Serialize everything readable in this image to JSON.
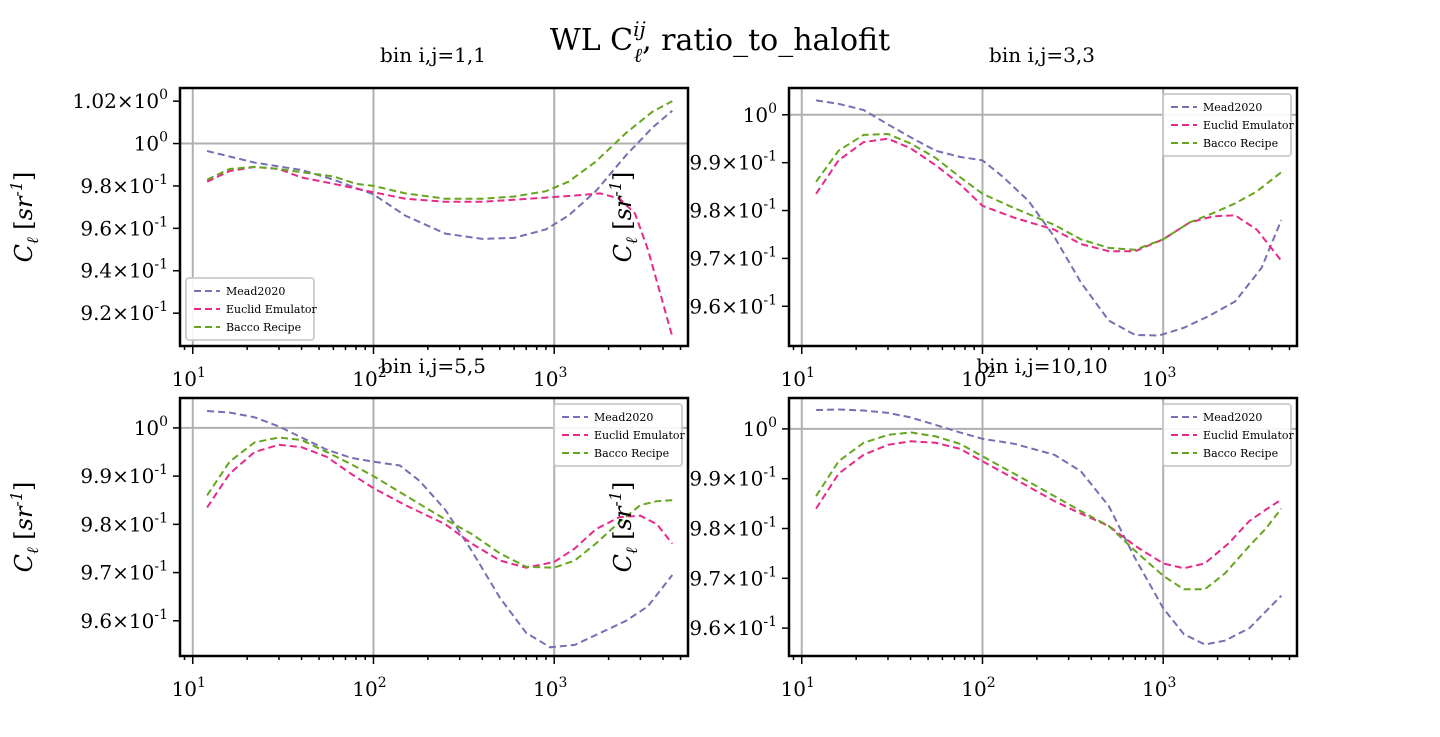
{
  "figure": {
    "title": "WL C",
    "title_sup": "ij",
    "title_sub": "ℓ",
    "title_rest": ", ratio_to_halofit",
    "colors": {
      "Mead2020": "#7570b3",
      "Euclid Emulator": "#e7298a",
      "Bacco Recipe": "#66a61e",
      "grid": "#b0b0b0"
    }
  },
  "chart_data": [
    {
      "type": "line",
      "title": "bin i,j=1,1",
      "ylabel": "C_ℓ [sr^-1]",
      "xlabel": "",
      "xscale": "log",
      "xlim": [
        8.5,
        5500
      ],
      "ylim": [
        0.9045,
        1.0262
      ],
      "yticks": [
        {
          "v": 0.92,
          "base": "9.2",
          "exp": "-1"
        },
        {
          "v": 0.94,
          "base": "9.4",
          "exp": "-1"
        },
        {
          "v": 0.96,
          "base": "9.6",
          "exp": "-1"
        },
        {
          "v": 0.98,
          "base": "9.8",
          "exp": "-1"
        },
        {
          "v": 1.0,
          "base": "10",
          "exp": "0"
        },
        {
          "v": 1.02,
          "base": "1.02",
          "exp": "0"
        }
      ],
      "ygrid": [
        1.0
      ],
      "xticks": [
        {
          "v": 10,
          "base": "10",
          "exp": "1"
        },
        {
          "v": 100,
          "base": "10",
          "exp": "2"
        },
        {
          "v": 1000,
          "base": "10",
          "exp": "3"
        }
      ],
      "grid": true,
      "legend": "lower-left",
      "series": [
        {
          "name": "Mead2020",
          "x": [
            12,
            22,
            40,
            60,
            100,
            150,
            250,
            400,
            600,
            900,
            1200,
            1700,
            2500,
            3500,
            4500
          ],
          "y": [
            0.9965,
            0.991,
            0.9875,
            0.983,
            0.976,
            0.966,
            0.9575,
            0.955,
            0.9555,
            0.9595,
            0.966,
            0.9775,
            0.9945,
            1.0075,
            1.0155
          ]
        },
        {
          "name": "Euclid Emulator",
          "x": [
            12,
            16,
            22,
            30,
            40,
            60,
            100,
            150,
            250,
            400,
            600,
            900,
            1300,
            1800,
            2300,
            2800,
            3300,
            4500
          ],
          "y": [
            0.982,
            0.987,
            0.989,
            0.988,
            0.984,
            0.981,
            0.977,
            0.974,
            0.9725,
            0.9725,
            0.9735,
            0.9745,
            0.9755,
            0.9765,
            0.974,
            0.967,
            0.95,
            0.909
          ]
        },
        {
          "name": "Bacco Recipe",
          "x": [
            12,
            16,
            22,
            30,
            40,
            60,
            80,
            100,
            150,
            250,
            400,
            600,
            900,
            1200,
            1700,
            2500,
            3500,
            4500
          ],
          "y": [
            0.983,
            0.988,
            0.989,
            0.988,
            0.9865,
            0.9845,
            0.981,
            0.98,
            0.9765,
            0.974,
            0.974,
            0.975,
            0.9775,
            0.982,
            0.9915,
            1.005,
            1.015,
            1.02
          ]
        }
      ]
    },
    {
      "type": "line",
      "title": "bin i,j=3,3",
      "ylabel": "C_ℓ [sr^-1]",
      "xlabel": "",
      "xscale": "log",
      "xlim": [
        8.5,
        5500
      ],
      "ylim": [
        0.9517,
        1.0056
      ],
      "yticks": [
        {
          "v": 0.96,
          "base": "9.6",
          "exp": "-1"
        },
        {
          "v": 0.97,
          "base": "9.7",
          "exp": "-1"
        },
        {
          "v": 0.98,
          "base": "9.8",
          "exp": "-1"
        },
        {
          "v": 0.99,
          "base": "9.9",
          "exp": "-1"
        },
        {
          "v": 1.0,
          "base": "10",
          "exp": "0"
        }
      ],
      "ygrid": [
        1.0
      ],
      "xticks": [
        {
          "v": 10,
          "base": "10",
          "exp": "1"
        },
        {
          "v": 100,
          "base": "10",
          "exp": "2"
        },
        {
          "v": 1000,
          "base": "10",
          "exp": "3"
        }
      ],
      "grid": true,
      "legend": "top-right",
      "series": [
        {
          "name": "Mead2020",
          "x": [
            12,
            16,
            22,
            30,
            40,
            55,
            75,
            100,
            130,
            180,
            250,
            350,
            500,
            700,
            950,
            1300,
            1800,
            2500,
            3500,
            4500
          ],
          "y": [
            1.003,
            1.0023,
            1.001,
            0.998,
            0.9953,
            0.9925,
            0.9912,
            0.9905,
            0.987,
            0.982,
            0.9745,
            0.965,
            0.957,
            0.954,
            0.9539,
            0.9555,
            0.958,
            0.961,
            0.968,
            0.978
          ]
        },
        {
          "name": "Euclid Emulator",
          "x": [
            12,
            16,
            22,
            30,
            40,
            55,
            75,
            100,
            150,
            250,
            350,
            500,
            700,
            1000,
            1400,
            1900,
            2500,
            3300,
            4500
          ],
          "y": [
            0.9835,
            0.9905,
            0.9943,
            0.995,
            0.993,
            0.9895,
            0.9855,
            0.981,
            0.9785,
            0.976,
            0.973,
            0.9715,
            0.9715,
            0.974,
            0.9775,
            0.9788,
            0.979,
            0.976,
            0.9695
          ]
        },
        {
          "name": "Bacco Recipe",
          "x": [
            12,
            16,
            22,
            30,
            40,
            55,
            75,
            100,
            150,
            250,
            350,
            500,
            700,
            1000,
            1400,
            1900,
            2500,
            3300,
            4500
          ],
          "y": [
            0.986,
            0.9925,
            0.9958,
            0.996,
            0.994,
            0.991,
            0.987,
            0.9835,
            0.9805,
            0.977,
            0.974,
            0.9722,
            0.9718,
            0.974,
            0.9775,
            0.9795,
            0.9815,
            0.984,
            0.988
          ]
        }
      ]
    },
    {
      "type": "line",
      "title": "bin i,j=5,5",
      "ylabel": "C_ℓ [sr^-1]",
      "xlabel": "",
      "xscale": "log",
      "xlim": [
        8.5,
        5500
      ],
      "ylim": [
        0.9527,
        1.0062
      ],
      "yticks": [
        {
          "v": 0.96,
          "base": "9.6",
          "exp": "-1"
        },
        {
          "v": 0.97,
          "base": "9.7",
          "exp": "-1"
        },
        {
          "v": 0.98,
          "base": "9.8",
          "exp": "-1"
        },
        {
          "v": 0.99,
          "base": "9.9",
          "exp": "-1"
        },
        {
          "v": 1.0,
          "base": "10",
          "exp": "0"
        }
      ],
      "ygrid": [
        1.0
      ],
      "xticks": [
        {
          "v": 10,
          "base": "10",
          "exp": "1"
        },
        {
          "v": 100,
          "base": "10",
          "exp": "2"
        },
        {
          "v": 1000,
          "base": "10",
          "exp": "3"
        }
      ],
      "grid": true,
      "legend": "top-right",
      "series": [
        {
          "name": "Mead2020",
          "x": [
            12,
            16,
            22,
            30,
            40,
            55,
            75,
            100,
            140,
            180,
            250,
            350,
            500,
            700,
            950,
            1300,
            1800,
            2500,
            3300,
            4500
          ],
          "y": [
            1.0035,
            1.0032,
            1.0022,
            1.0003,
            0.998,
            0.9955,
            0.9938,
            0.993,
            0.9922,
            0.989,
            0.983,
            0.9745,
            0.9648,
            0.9575,
            0.9545,
            0.955,
            0.9575,
            0.96,
            0.963,
            0.9695
          ]
        },
        {
          "name": "Euclid Emulator",
          "x": [
            12,
            16,
            22,
            30,
            40,
            55,
            75,
            100,
            150,
            250,
            350,
            500,
            700,
            1000,
            1300,
            1700,
            2300,
            3000,
            3700,
            4500
          ],
          "y": [
            0.9835,
            0.9905,
            0.995,
            0.9965,
            0.996,
            0.994,
            0.9905,
            0.9875,
            0.984,
            0.98,
            0.976,
            0.9725,
            0.971,
            0.9722,
            0.975,
            0.979,
            0.9815,
            0.9818,
            0.98,
            0.976
          ]
        },
        {
          "name": "Bacco Recipe",
          "x": [
            12,
            16,
            22,
            30,
            40,
            55,
            75,
            100,
            150,
            250,
            350,
            500,
            700,
            1000,
            1300,
            1700,
            2300,
            3000,
            3700,
            4500
          ],
          "y": [
            0.986,
            0.993,
            0.997,
            0.998,
            0.9975,
            0.995,
            0.9925,
            0.99,
            0.986,
            0.981,
            0.978,
            0.974,
            0.9712,
            0.971,
            0.9725,
            0.976,
            0.9805,
            0.984,
            0.9848,
            0.985
          ]
        }
      ]
    },
    {
      "type": "line",
      "title": "bin i,j=10,10",
      "ylabel": "C_ℓ [sr^-1]",
      "xlabel": "",
      "xscale": "log",
      "xlim": [
        8.5,
        5500
      ],
      "ylim": [
        0.9544,
        1.0062
      ],
      "yticks": [
        {
          "v": 0.96,
          "base": "9.6",
          "exp": "-1"
        },
        {
          "v": 0.97,
          "base": "9.7",
          "exp": "-1"
        },
        {
          "v": 0.98,
          "base": "9.8",
          "exp": "-1"
        },
        {
          "v": 0.99,
          "base": "9.9",
          "exp": "-1"
        },
        {
          "v": 1.0,
          "base": "10",
          "exp": "0"
        }
      ],
      "ygrid": [
        1.0
      ],
      "xticks": [
        {
          "v": 10,
          "base": "10",
          "exp": "1"
        },
        {
          "v": 100,
          "base": "10",
          "exp": "2"
        },
        {
          "v": 1000,
          "base": "10",
          "exp": "3"
        }
      ],
      "grid": true,
      "legend": "top-right",
      "series": [
        {
          "name": "Mead2020",
          "x": [
            12,
            16,
            22,
            30,
            40,
            55,
            75,
            100,
            150,
            250,
            350,
            500,
            700,
            1000,
            1300,
            1700,
            2200,
            3000,
            4500
          ],
          "y": [
            1.0038,
            1.0039,
            1.0037,
            1.0032,
            1.0023,
            1.0008,
            0.9993,
            0.998,
            0.997,
            0.9948,
            0.9915,
            0.9845,
            0.974,
            0.964,
            0.9588,
            0.9567,
            0.9575,
            0.96,
            0.9665
          ]
        },
        {
          "name": "Euclid Emulator",
          "x": [
            12,
            16,
            22,
            30,
            40,
            55,
            75,
            100,
            150,
            250,
            350,
            500,
            700,
            1000,
            1300,
            1700,
            2300,
            3000,
            3700,
            4500
          ],
          "y": [
            0.984,
            0.991,
            0.9948,
            0.9968,
            0.9975,
            0.9972,
            0.996,
            0.9935,
            0.99,
            0.9855,
            0.983,
            0.9805,
            0.9765,
            0.973,
            0.972,
            0.973,
            0.977,
            0.9815,
            0.9838,
            0.9858
          ]
        },
        {
          "name": "Bacco Recipe",
          "x": [
            12,
            16,
            22,
            30,
            40,
            55,
            75,
            100,
            150,
            250,
            350,
            500,
            700,
            1000,
            1300,
            1700,
            2200,
            3000,
            3700,
            4500
          ],
          "y": [
            0.9865,
            0.9935,
            0.9972,
            0.9988,
            0.9993,
            0.9985,
            0.997,
            0.9945,
            0.991,
            0.9865,
            0.9835,
            0.9805,
            0.9755,
            0.9705,
            0.9678,
            0.9678,
            0.971,
            0.9765,
            0.98,
            0.984
          ]
        }
      ]
    }
  ]
}
